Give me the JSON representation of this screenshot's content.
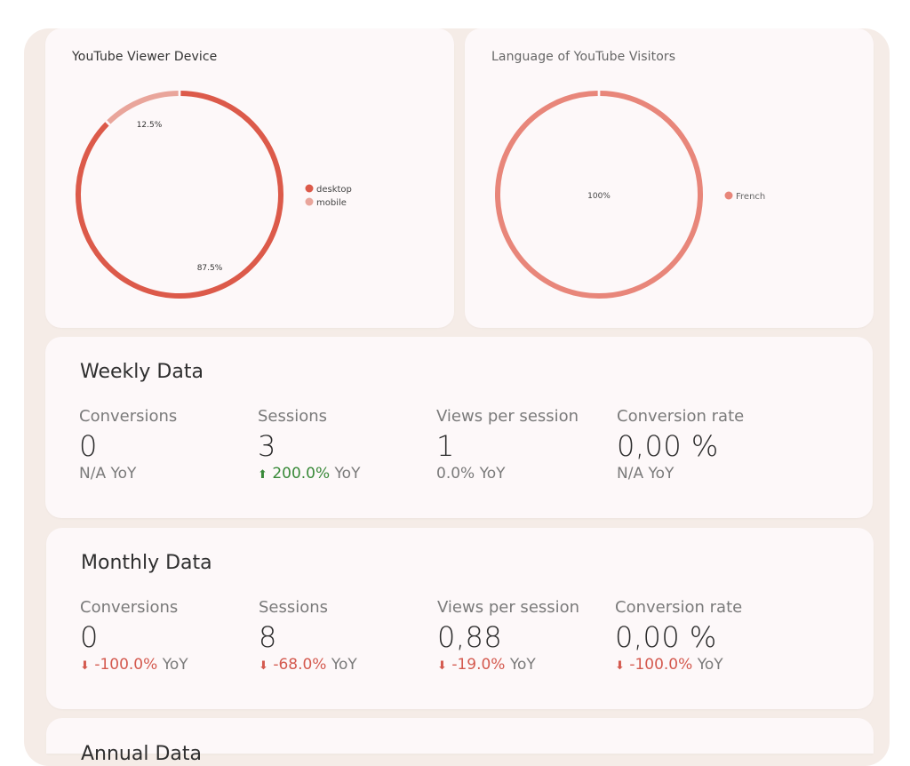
{
  "colors": {
    "desktop": "#dc5a4a",
    "mobile": "#e9a59b",
    "french": "#e8867a",
    "positive": "#3a8a3a",
    "negative": "#d45a4f"
  },
  "chart_data": [
    {
      "type": "pie",
      "title": "YouTube Viewer Device",
      "series": [
        {
          "values": [
            87.5,
            12.5
          ]
        }
      ],
      "categories": [
        "desktop",
        "mobile"
      ],
      "labels": [
        "87.5%",
        "12.5%"
      ],
      "legend": "right"
    },
    {
      "type": "pie",
      "title": "Language of YouTube Visitors",
      "series": [
        {
          "values": [
            100
          ]
        }
      ],
      "categories": [
        "French"
      ],
      "labels": [
        "100%"
      ],
      "legend": "right"
    }
  ],
  "weekly": {
    "title": "Weekly Data",
    "stats": [
      {
        "label": "Conversions",
        "value": "0",
        "change": "",
        "yoy": "N/A YoY",
        "dir": "none"
      },
      {
        "label": "Sessions",
        "value": "3",
        "change": "200.0%",
        "yoy": "YoY",
        "dir": "up"
      },
      {
        "label": "Views per session",
        "value": "1",
        "change": "",
        "yoy": "0.0% YoY",
        "dir": "none"
      },
      {
        "label": "Conversion rate",
        "value": "0,00 %",
        "change": "",
        "yoy": "N/A YoY",
        "dir": "none"
      }
    ]
  },
  "monthly": {
    "title": "Monthly Data",
    "stats": [
      {
        "label": "Conversions",
        "value": "0",
        "change": "-100.0%",
        "yoy": "YoY",
        "dir": "down"
      },
      {
        "label": "Sessions",
        "value": "8",
        "change": "-68.0%",
        "yoy": "YoY",
        "dir": "down"
      },
      {
        "label": "Views per session",
        "value": "0,88",
        "change": "-19.0%",
        "yoy": "YoY",
        "dir": "down"
      },
      {
        "label": "Conversion rate",
        "value": "0,00 %",
        "change": "-100.0%",
        "yoy": "YoY",
        "dir": "down"
      }
    ]
  },
  "annual": {
    "title": "Annual Data"
  }
}
